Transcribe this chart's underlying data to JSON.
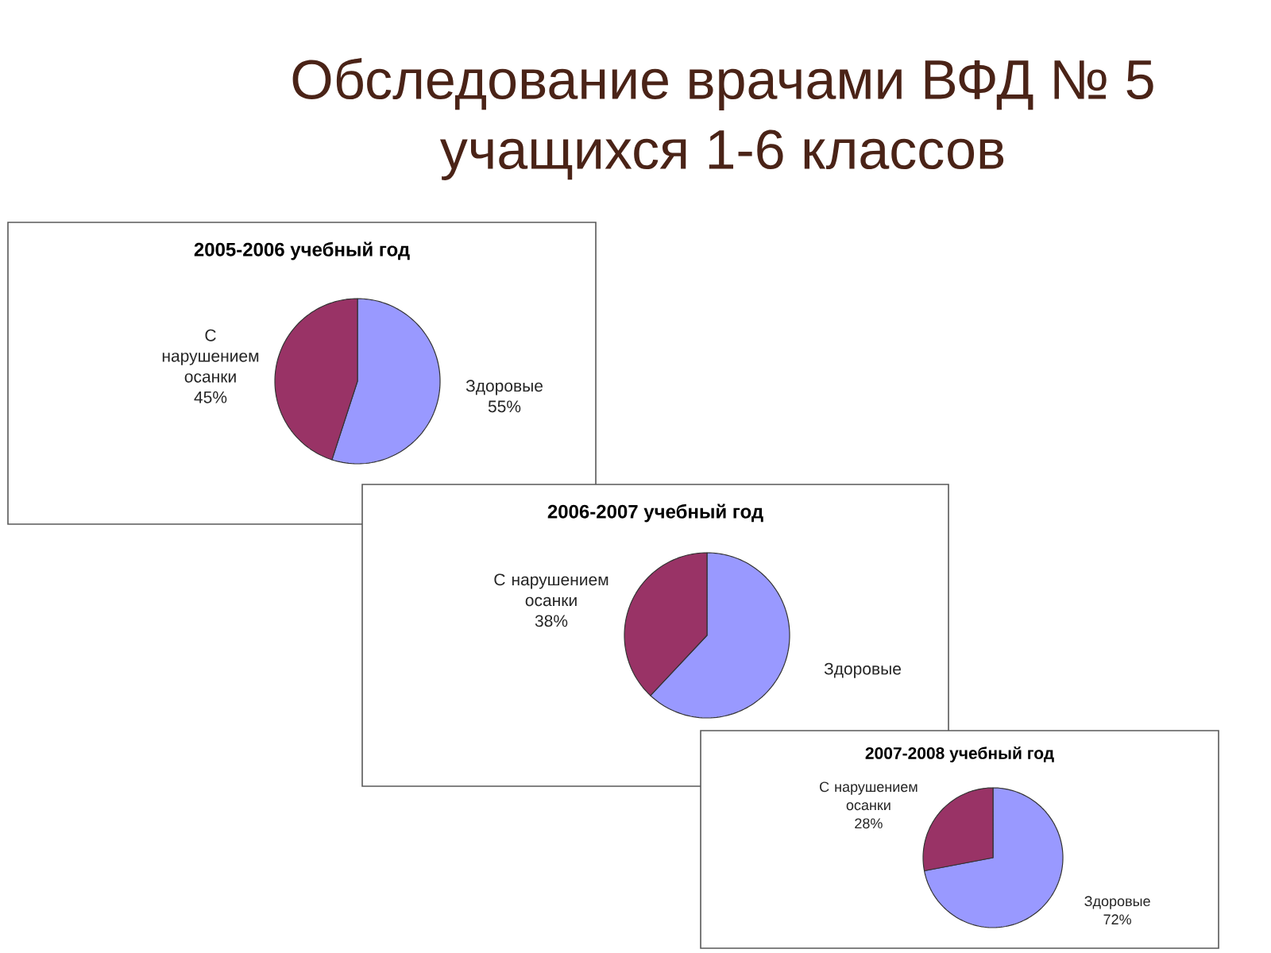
{
  "chart_data": [
    {
      "type": "other",
      "title": "Обследование врачами ВФД № 5 учащихся 1-6 классов"
    },
    {
      "type": "pie",
      "title": "2005-2006 учебный год",
      "categories": [
        "Здоровые",
        "С нарушением осанки"
      ],
      "values": [
        55,
        45
      ],
      "colors": [
        "#9999ff",
        "#993366"
      ],
      "value_labels": [
        "55%",
        "45%"
      ]
    },
    {
      "type": "pie",
      "title": "2006-2007 учебный год",
      "categories": [
        "Здоровые",
        "С нарушением осанки"
      ],
      "values": [
        62,
        38
      ],
      "colors": [
        "#9999ff",
        "#993366"
      ],
      "value_labels": [
        null,
        "38%"
      ]
    },
    {
      "type": "pie",
      "title": "2007-2008 учебный год",
      "categories": [
        "Здоровые",
        "С нарушением осанки"
      ],
      "values": [
        72,
        28
      ],
      "colors": [
        "#9999ff",
        "#993366"
      ],
      "value_labels": [
        "72%",
        "28%"
      ]
    }
  ]
}
